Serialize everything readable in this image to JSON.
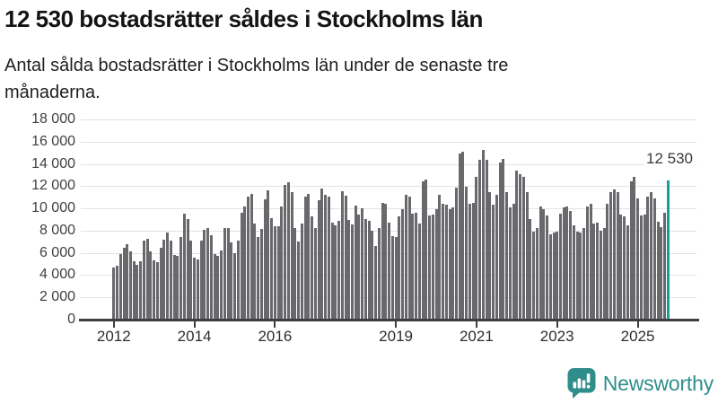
{
  "header": {
    "title": "12 530 bostadsrätter såldes i Stockholms län",
    "subtitle_line1": "Antal sålda bostadsrätter i Stockholms län under de senaste tre",
    "subtitle_line2": "månaderna."
  },
  "colors": {
    "bar": "#68686d",
    "highlight": "#189c9c",
    "grid": "#e2e2e2",
    "axis": "#3e3e42",
    "tick": "#3e3e42",
    "brand": "#2f8e8b"
  },
  "footer": {
    "brand": "Newsworthy",
    "logo_icon": "bar-chart-speech-bubble-icon"
  },
  "chart_data": {
    "type": "bar",
    "title": "12 530 bostadsrätter såldes i Stockholms län",
    "subtitle": "Antal sålda bostadsrätter i Stockholms län under de senaste tre månaderna.",
    "xlabel": "",
    "ylabel": "",
    "frequency": "monthly",
    "x_start": "2012-01",
    "x_end": "2025-10",
    "ylim": [
      0,
      18000
    ],
    "grid": true,
    "y_ticks": [
      {
        "value": 0,
        "label": "0"
      },
      {
        "value": 2000,
        "label": "2 000"
      },
      {
        "value": 4000,
        "label": "4 000"
      },
      {
        "value": 6000,
        "label": "6 000"
      },
      {
        "value": 8000,
        "label": "8 000"
      },
      {
        "value": 10000,
        "label": "10 000"
      },
      {
        "value": 12000,
        "label": "12 000"
      },
      {
        "value": 14000,
        "label": "14 000"
      },
      {
        "value": 16000,
        "label": "16 000"
      },
      {
        "value": 18000,
        "label": "18 000"
      }
    ],
    "x_ticks": [
      {
        "year": 2012,
        "label": "2012"
      },
      {
        "year": 2014,
        "label": "2014"
      },
      {
        "year": 2016,
        "label": "2016"
      },
      {
        "year": 2019,
        "label": "2019"
      },
      {
        "year": 2021,
        "label": "2021"
      },
      {
        "year": 2023,
        "label": "2023"
      },
      {
        "year": 2025,
        "label": "2025"
      }
    ],
    "values": [
      4700,
      4860,
      5860,
      6480,
      6750,
      6160,
      5290,
      4910,
      5290,
      7130,
      7260,
      6130,
      5320,
      5180,
      6480,
      7210,
      7830,
      7080,
      5780,
      5700,
      7400,
      9510,
      9080,
      7080,
      5570,
      5380,
      7080,
      8100,
      8210,
      7590,
      5900,
      5700,
      6200,
      8270,
      8270,
      6920,
      5970,
      7080,
      9620,
      10160,
      11100,
      11320,
      8620,
      7400,
      8130,
      10830,
      11590,
      9160,
      8400,
      8400,
      10160,
      12130,
      12320,
      11450,
      8210,
      7000,
      8620,
      11100,
      11320,
      9290,
      8210,
      10700,
      11770,
      11230,
      11050,
      8750,
      8480,
      8890,
      11580,
      11180,
      8940,
      8560,
      10290,
      9420,
      10020,
      9070,
      8890,
      8000,
      6590,
      8260,
      10500,
      10420,
      8750,
      7530,
      7400,
      9290,
      9970,
      11230,
      11100,
      9500,
      9620,
      8620,
      12400,
      12590,
      9340,
      9480,
      9900,
      11220,
      10420,
      10310,
      9910,
      10100,
      11850,
      14900,
      15090,
      11930,
      10420,
      10500,
      12800,
      14340,
      15230,
      14340,
      11450,
      10310,
      11230,
      14150,
      14470,
      11500,
      10100,
      10420,
      13390,
      13070,
      12800,
      11450,
      9070,
      7880,
      8260,
      10160,
      9970,
      9340,
      7670,
      7800,
      7900,
      9500,
      10100,
      10160,
      9750,
      8480,
      7880,
      7800,
      8210,
      10160,
      10420,
      8620,
      8700,
      8000,
      8210,
      10420,
      11500,
      11720,
      11500,
      9420,
      9290,
      8480,
      12400,
      12800,
      10910,
      9340,
      9420,
      11050,
      11450,
      10910,
      8810,
      8350,
      9620,
      12530
    ],
    "highlight": {
      "index": 165,
      "value": 12530,
      "label": "12 530"
    }
  }
}
